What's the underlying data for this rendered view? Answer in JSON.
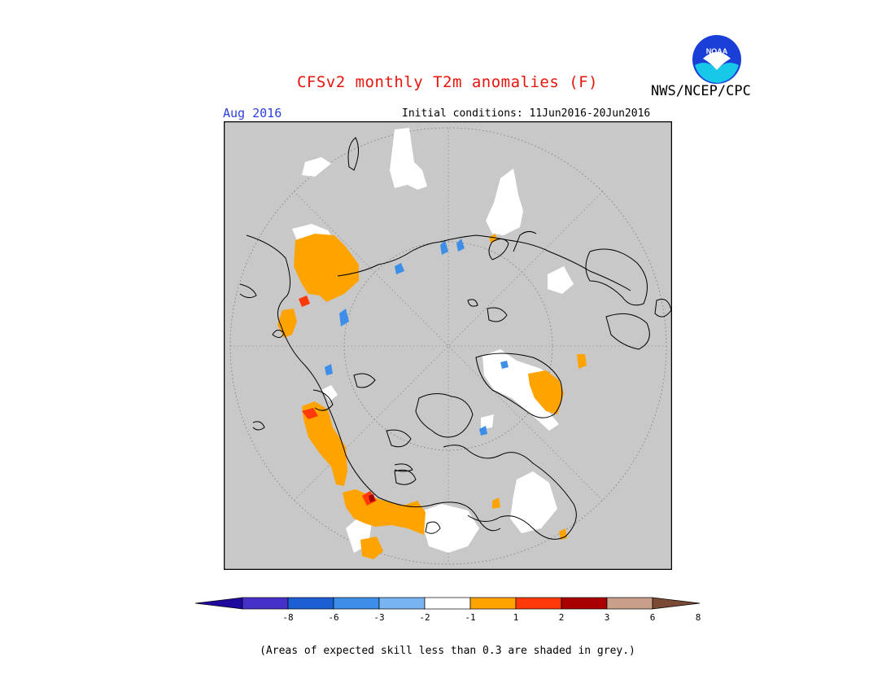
{
  "title": "CFSv2 monthly T2m anomalies (F)",
  "agency": "NWS/NCEP/CPC",
  "logo_text": "NOAA",
  "month": "Aug 2016",
  "initial_conditions": "Initial conditions: 11Jun2016-20Jun2016",
  "note": "(Areas of expected skill less than 0.3 are shaded in grey.)",
  "colorbar": {
    "labels": [
      "-8",
      "-6",
      "-3",
      "-2",
      "-1",
      "1",
      "2",
      "3",
      "6",
      "8"
    ],
    "colors": [
      "#1f0a9e",
      "#4631c8",
      "#1c5fd4",
      "#3d8ee8",
      "#78b4f0",
      "#ffffff",
      "#ffa300",
      "#ff3a0a",
      "#a80000",
      "#c8a08a",
      "#7a4a35"
    ]
  },
  "map": {
    "background": "#c8c8c8",
    "projection": "north-polar-stereographic"
  }
}
